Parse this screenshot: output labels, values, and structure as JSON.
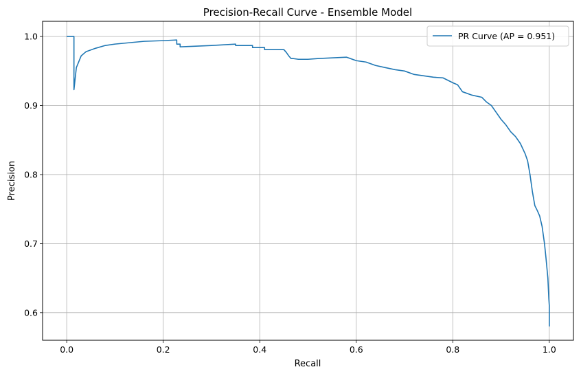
{
  "chart_data": {
    "type": "line",
    "title": "Precision-Recall Curve - Ensemble Model",
    "xlabel": "Recall",
    "ylabel": "Precision",
    "xlim": [
      -0.05,
      1.05
    ],
    "ylim": [
      0.56,
      1.022
    ],
    "xticks": [
      0.0,
      0.2,
      0.4,
      0.6,
      0.8,
      1.0
    ],
    "xtick_labels": [
      "0.0",
      "0.2",
      "0.4",
      "0.6",
      "0.8",
      "1.0"
    ],
    "yticks": [
      0.6,
      0.7,
      0.8,
      0.9,
      1.0
    ],
    "ytick_labels": [
      "0.6",
      "0.7",
      "0.8",
      "0.9",
      "1.0"
    ],
    "grid": true,
    "legend_position": "top-right",
    "series": [
      {
        "name": "PR Curve (AP = 0.951)",
        "color": "#1f77b4",
        "x": [
          0.0,
          0.015,
          0.015,
          0.015,
          0.02,
          0.03,
          0.04,
          0.06,
          0.08,
          0.1,
          0.13,
          0.16,
          0.2,
          0.228,
          0.228,
          0.235,
          0.235,
          0.3,
          0.35,
          0.35,
          0.385,
          0.385,
          0.41,
          0.41,
          0.45,
          0.455,
          0.46,
          0.465,
          0.47,
          0.48,
          0.5,
          0.52,
          0.55,
          0.58,
          0.6,
          0.62,
          0.64,
          0.66,
          0.68,
          0.7,
          0.72,
          0.74,
          0.76,
          0.78,
          0.8,
          0.81,
          0.82,
          0.84,
          0.86,
          0.87,
          0.88,
          0.89,
          0.9,
          0.91,
          0.92,
          0.93,
          0.94,
          0.95,
          0.955,
          0.96,
          0.965,
          0.97,
          0.975,
          0.98,
          0.985,
          0.99,
          0.993,
          0.995,
          0.997,
          0.999,
          1.0,
          1.0
        ],
        "y": [
          1.0,
          1.0,
          0.993,
          0.923,
          0.955,
          0.972,
          0.978,
          0.983,
          0.987,
          0.989,
          0.991,
          0.993,
          0.994,
          0.995,
          0.989,
          0.989,
          0.985,
          0.987,
          0.989,
          0.987,
          0.987,
          0.984,
          0.984,
          0.981,
          0.981,
          0.977,
          0.972,
          0.968,
          0.968,
          0.967,
          0.967,
          0.968,
          0.969,
          0.97,
          0.965,
          0.963,
          0.958,
          0.955,
          0.952,
          0.95,
          0.945,
          0.943,
          0.941,
          0.94,
          0.933,
          0.93,
          0.92,
          0.915,
          0.912,
          0.905,
          0.9,
          0.89,
          0.88,
          0.872,
          0.862,
          0.855,
          0.845,
          0.83,
          0.82,
          0.8,
          0.775,
          0.755,
          0.748,
          0.74,
          0.725,
          0.7,
          0.68,
          0.665,
          0.65,
          0.62,
          0.61,
          0.58
        ]
      }
    ]
  }
}
